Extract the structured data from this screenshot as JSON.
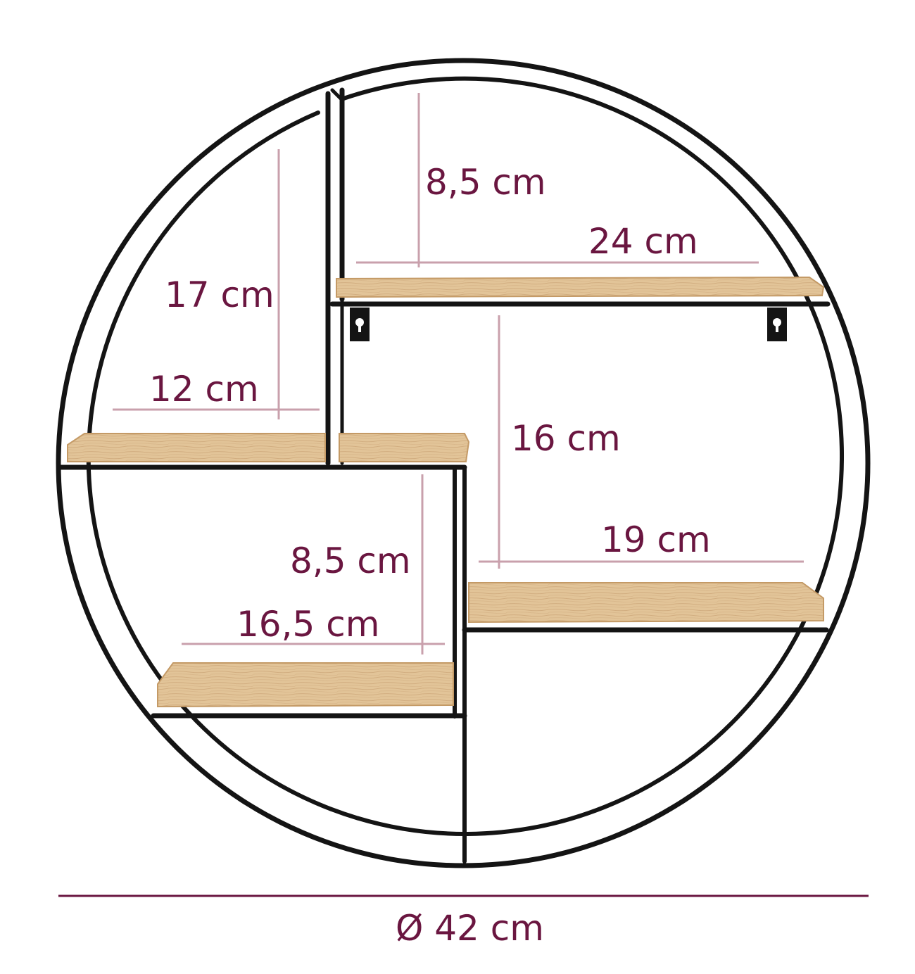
{
  "colors": {
    "frame": "#141414",
    "dimension": "#6a1640",
    "guide": "#c9a0ac",
    "wood": "#e2c498",
    "wood_edge": "#c49a66",
    "wood_grain": "#caa374"
  },
  "dimensions": {
    "top_shelf_height": "8,5 cm",
    "top_shelf_width": "24 cm",
    "left_shelf_height": "17 cm",
    "left_shelf_width": "12 cm",
    "right_shelf_height": "16 cm",
    "right_shelf_width": "19 cm",
    "bottom_shelf_height": "8,5 cm",
    "bottom_shelf_width": "16,5 cm",
    "diameter": "Ø 42 cm"
  }
}
